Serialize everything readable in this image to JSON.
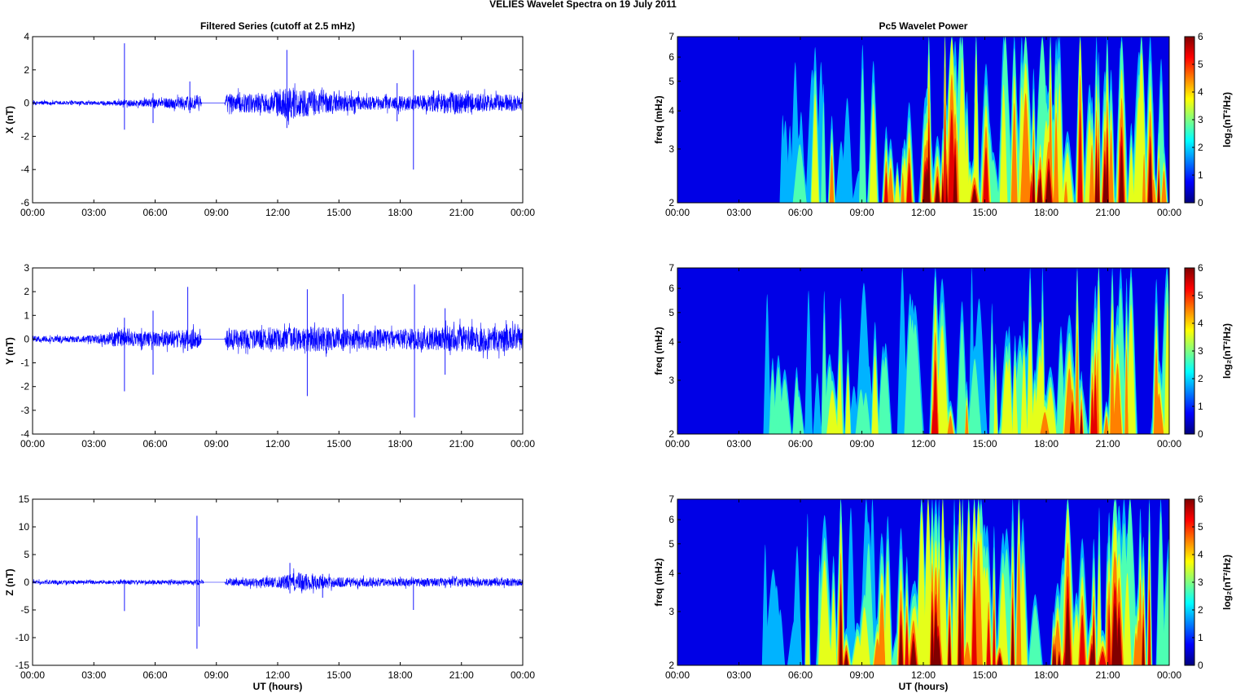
{
  "suptitle": "VELIES Wavelet Spectra on 19 July      2011",
  "colors": {
    "trace": "#0000ff",
    "axes": "#000000"
  },
  "chart_data": [
    {
      "type": "line",
      "panel": "X",
      "title": "Filtered Series (cutoff at 2.5 mHz)",
      "ylabel": "X (nT)",
      "xlabel": "",
      "ylim": [
        -6,
        4
      ],
      "yticks": [
        "4",
        "2",
        "0",
        "-2",
        "-4",
        "-6"
      ],
      "ytick_values": [
        4,
        2,
        0,
        -2,
        -4,
        -6
      ],
      "xticks": [
        "00:00",
        "03:00",
        "06:00",
        "09:00",
        "12:00",
        "15:00",
        "18:00",
        "21:00",
        "00:00"
      ],
      "xlim_hours": [
        0,
        24
      ],
      "noise": [
        [
          0,
          0.12
        ],
        [
          3,
          0.12
        ],
        [
          6,
          0.25
        ],
        [
          8.2,
          0.5
        ],
        [
          8.3,
          0
        ],
        [
          9.4,
          0
        ],
        [
          9.5,
          0.55
        ],
        [
          11.5,
          0.6
        ],
        [
          12.5,
          1.0
        ],
        [
          14.5,
          0.6
        ],
        [
          16.5,
          0.4
        ],
        [
          18,
          0.45
        ],
        [
          19.5,
          0.5
        ],
        [
          20.5,
          0.7
        ],
        [
          22,
          0.55
        ],
        [
          24,
          0.5
        ]
      ],
      "spikes": [
        [
          4.5,
          3.6,
          -1.6
        ],
        [
          5.9,
          0.6,
          -1.2
        ],
        [
          7.7,
          1.3,
          -0.6
        ],
        [
          12.45,
          3.2,
          -1.5
        ],
        [
          17.85,
          1.2,
          -1.1
        ],
        [
          18.65,
          3.2,
          -4.0
        ]
      ]
    },
    {
      "type": "line",
      "panel": "Y",
      "title": "",
      "ylabel": "Y (nT)",
      "xlabel": "",
      "ylim": [
        -4,
        3
      ],
      "yticks": [
        "3",
        "2",
        "1",
        "0",
        "-1",
        "-2",
        "-3",
        "-4"
      ],
      "ytick_values": [
        3,
        2,
        1,
        0,
        -1,
        -2,
        -3,
        -4
      ],
      "xticks": [
        "00:00",
        "03:00",
        "06:00",
        "09:00",
        "12:00",
        "15:00",
        "18:00",
        "21:00",
        "00:00"
      ],
      "xlim_hours": [
        0,
        24
      ],
      "noise": [
        [
          0,
          0.12
        ],
        [
          3,
          0.15
        ],
        [
          4.2,
          0.35
        ],
        [
          6,
          0.3
        ],
        [
          8.2,
          0.45
        ],
        [
          8.3,
          0
        ],
        [
          9.4,
          0
        ],
        [
          9.5,
          0.4
        ],
        [
          12,
          0.45
        ],
        [
          13.5,
          0.55
        ],
        [
          16,
          0.4
        ],
        [
          19,
          0.45
        ],
        [
          21,
          0.55
        ],
        [
          24,
          0.5
        ]
      ],
      "spikes": [
        [
          4.5,
          0.9,
          -2.2
        ],
        [
          5.9,
          1.2,
          -1.5
        ],
        [
          7.6,
          2.2,
          -0.5
        ],
        [
          13.45,
          2.1,
          -2.4
        ],
        [
          15.2,
          1.9,
          -0.5
        ],
        [
          18.7,
          2.3,
          -3.3
        ],
        [
          20.2,
          1.3,
          -1.5
        ]
      ]
    },
    {
      "type": "line",
      "panel": "Z",
      "title": "",
      "ylabel": "Z (nT)",
      "xlabel": "UT (hours)",
      "ylim": [
        -15,
        15
      ],
      "yticks": [
        "15",
        "10",
        "5",
        "0",
        "-5",
        "-10",
        "-15"
      ],
      "ytick_values": [
        15,
        10,
        5,
        0,
        -5,
        -10,
        -15
      ],
      "xticks": [
        "00:00",
        "03:00",
        "06:00",
        "09:00",
        "12:00",
        "15:00",
        "18:00",
        "21:00",
        "00:00"
      ],
      "xlim_hours": [
        0,
        24
      ],
      "noise": [
        [
          0,
          0.35
        ],
        [
          4,
          0.35
        ],
        [
          7.5,
          0.4
        ],
        [
          8.3,
          0.5
        ],
        [
          8.4,
          0
        ],
        [
          9.4,
          0
        ],
        [
          9.5,
          0.6
        ],
        [
          12,
          1.0
        ],
        [
          13,
          1.8
        ],
        [
          14.5,
          1.0
        ],
        [
          17,
          0.7
        ],
        [
          20,
          0.8
        ],
        [
          24,
          0.7
        ]
      ],
      "spikes": [
        [
          4.5,
          0.5,
          -5.2
        ],
        [
          8.05,
          12.0,
          -12.0
        ],
        [
          8.15,
          8,
          -8
        ],
        [
          12.6,
          3.5,
          -2
        ],
        [
          14.2,
          1.5,
          -2.8
        ],
        [
          18.65,
          0.8,
          -5.0
        ]
      ]
    },
    {
      "type": "heatmap",
      "panel": "X",
      "title": "Pc5 Wavelet Power",
      "ylabel": "freq (mHz)",
      "xlabel": "",
      "yscale": "log",
      "ylim": [
        2,
        7
      ],
      "yticks": [
        "2",
        "3",
        "4",
        "5",
        "6",
        "7"
      ],
      "ytick_values": [
        2,
        3,
        4,
        5,
        6,
        7
      ],
      "xticks": [
        "00:00",
        "03:00",
        "06:00",
        "09:00",
        "12:00",
        "15:00",
        "18:00",
        "21:00",
        "00:00"
      ],
      "xlim_hours": [
        0,
        24
      ],
      "colorbar": {
        "label": "log₂(nT²/Hz)",
        "range": [
          0,
          6
        ],
        "ticks": [
          "0",
          "1",
          "2",
          "3",
          "4",
          "5",
          "6"
        ],
        "tick_values": [
          0,
          1,
          2,
          3,
          4,
          5,
          6
        ],
        "colormap": "jet"
      },
      "activity": [
        [
          0,
          0.2
        ],
        [
          2.5,
          0.4
        ],
        [
          4,
          0.8
        ],
        [
          6,
          1.3
        ],
        [
          7.5,
          2.6
        ],
        [
          8.3,
          1.2
        ],
        [
          9.2,
          2.5
        ],
        [
          10.5,
          3.6
        ],
        [
          12,
          5.0
        ],
        [
          14,
          4.6
        ],
        [
          15.5,
          3.4
        ],
        [
          17.5,
          4.5
        ],
        [
          19,
          3.5
        ],
        [
          20.5,
          5.0
        ],
        [
          22,
          4.2
        ],
        [
          24,
          3.5
        ]
      ]
    },
    {
      "type": "heatmap",
      "panel": "Y",
      "title": "",
      "ylabel": "freq (mHz)",
      "xlabel": "",
      "yscale": "log",
      "ylim": [
        2,
        7
      ],
      "yticks": [
        "2",
        "3",
        "4",
        "5",
        "6",
        "7"
      ],
      "ytick_values": [
        2,
        3,
        4,
        5,
        6,
        7
      ],
      "xticks": [
        "00:00",
        "03:00",
        "06:00",
        "09:00",
        "12:00",
        "15:00",
        "18:00",
        "21:00",
        "00:00"
      ],
      "xlim_hours": [
        0,
        24
      ],
      "colorbar": {
        "label": "log₂(nT²/Hz)",
        "range": [
          0,
          6
        ],
        "ticks": [
          "0",
          "1",
          "2",
          "3",
          "4",
          "5",
          "6"
        ],
        "tick_values": [
          0,
          1,
          2,
          3,
          4,
          5,
          6
        ],
        "colormap": "jet"
      },
      "activity": [
        [
          0,
          0.1
        ],
        [
          3,
          0.3
        ],
        [
          4.5,
          1.8
        ],
        [
          6.5,
          1.5
        ],
        [
          7.5,
          2.4
        ],
        [
          9,
          1.6
        ],
        [
          11,
          2.6
        ],
        [
          12,
          3.6
        ],
        [
          13.5,
          3.2
        ],
        [
          15.5,
          2.0
        ],
        [
          17.5,
          2.6
        ],
        [
          19.5,
          3.6
        ],
        [
          21.5,
          4.0
        ],
        [
          23,
          3.0
        ],
        [
          24,
          2.8
        ]
      ]
    },
    {
      "type": "heatmap",
      "panel": "Z",
      "title": "",
      "ylabel": "freq (mHz)",
      "xlabel": "UT (hours)",
      "yscale": "log",
      "ylim": [
        2,
        7
      ],
      "yticks": [
        "2",
        "3",
        "4",
        "5",
        "6",
        "7"
      ],
      "ytick_values": [
        2,
        3,
        4,
        5,
        6,
        7
      ],
      "xticks": [
        "00:00",
        "03:00",
        "06:00",
        "09:00",
        "12:00",
        "15:00",
        "18:00",
        "21:00",
        "00:00"
      ],
      "xlim_hours": [
        0,
        24
      ],
      "colorbar": {
        "label": "log₂(nT²/Hz)",
        "range": [
          0,
          6
        ],
        "ticks": [
          "0",
          "1",
          "2",
          "3",
          "4",
          "5",
          "6"
        ],
        "tick_values": [
          0,
          1,
          2,
          3,
          4,
          5,
          6
        ],
        "colormap": "jet"
      },
      "activity": [
        [
          0,
          0.2
        ],
        [
          3.5,
          0.6
        ],
        [
          5.5,
          1.2
        ],
        [
          7.5,
          3.0
        ],
        [
          8.1,
          6.0
        ],
        [
          8.5,
          1.6
        ],
        [
          9.5,
          3.0
        ],
        [
          11,
          4.0
        ],
        [
          12.5,
          5.2
        ],
        [
          14,
          4.8
        ],
        [
          15.5,
          3.6
        ],
        [
          17.5,
          4.0
        ],
        [
          19.5,
          4.2
        ],
        [
          20.5,
          5.0
        ],
        [
          22,
          4.0
        ],
        [
          24,
          3.4
        ]
      ]
    }
  ]
}
